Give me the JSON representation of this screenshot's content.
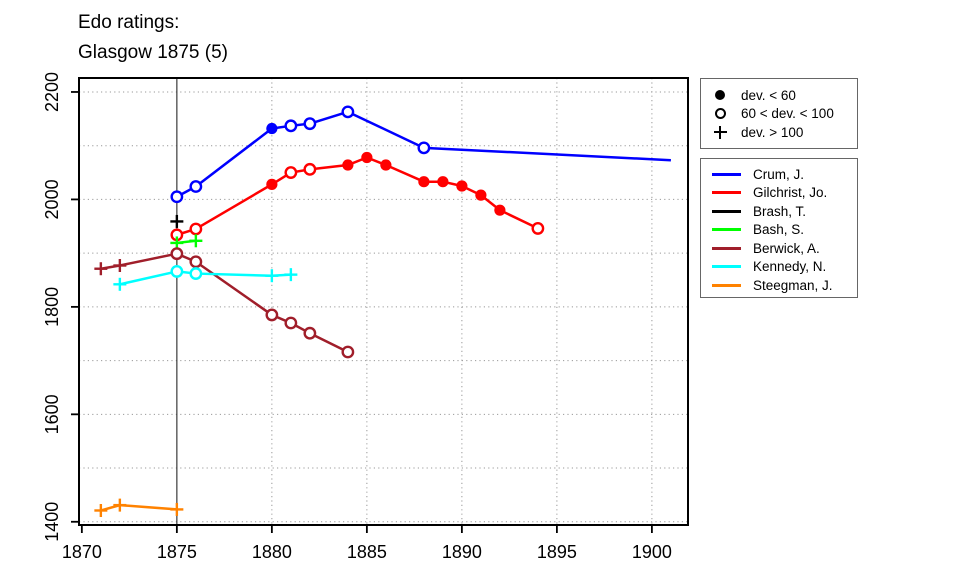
{
  "title": {
    "line1": "Edo ratings:",
    "line2": "Glasgow 1875 (5)"
  },
  "marker_legend": {
    "items": [
      {
        "marker": "filled-circle",
        "label": "dev. < 60"
      },
      {
        "marker": "open-circle",
        "label": "60 < dev. < 100"
      },
      {
        "marker": "plus",
        "label": "dev. > 100"
      }
    ]
  },
  "chart_data": {
    "type": "line",
    "title": "Edo ratings: Glasgow 1875 (5)",
    "xlabel": "",
    "ylabel": "",
    "xlim": [
      1869.85,
      1901.9
    ],
    "ylim": [
      1394,
      2226
    ],
    "x_ticks": [
      1870,
      1875,
      1880,
      1885,
      1890,
      1895,
      1900
    ],
    "y_ticks": [
      1400,
      1600,
      1800,
      2000,
      2200
    ],
    "x_gridlines": [
      1880,
      1885,
      1890,
      1895,
      1900
    ],
    "y_gridlines": [
      1400,
      1500,
      1600,
      1700,
      1800,
      1900,
      2000,
      2100,
      2200
    ],
    "event_line_x": 1875,
    "grid": "dotted",
    "legend_position": "right-outside",
    "marker_meaning": {
      "filled": "dev. < 60",
      "open": "60 < dev. < 100",
      "plus": "dev. > 100"
    },
    "series": [
      {
        "name": "Crum, J.",
        "color": "#0000FF",
        "points": [
          {
            "year": 1875,
            "rating": 2005,
            "marker": "open"
          },
          {
            "year": 1876,
            "rating": 2024,
            "marker": "open"
          },
          {
            "year": 1880,
            "rating": 2132,
            "marker": "filled"
          },
          {
            "year": 1881,
            "rating": 2137,
            "marker": "open"
          },
          {
            "year": 1882,
            "rating": 2141,
            "marker": "open"
          },
          {
            "year": 1884,
            "rating": 2163,
            "marker": "open"
          },
          {
            "year": 1888,
            "rating": 2096,
            "marker": "open"
          },
          {
            "year": 1901,
            "rating": 2073,
            "marker": "none"
          }
        ]
      },
      {
        "name": "Gilchrist, Jo.",
        "color": "#FF0000",
        "points": [
          {
            "year": 1875,
            "rating": 1934,
            "marker": "open"
          },
          {
            "year": 1876,
            "rating": 1945,
            "marker": "open"
          },
          {
            "year": 1880,
            "rating": 2028,
            "marker": "filled"
          },
          {
            "year": 1881,
            "rating": 2050,
            "marker": "open"
          },
          {
            "year": 1882,
            "rating": 2056,
            "marker": "open"
          },
          {
            "year": 1884,
            "rating": 2064,
            "marker": "filled"
          },
          {
            "year": 1885,
            "rating": 2078,
            "marker": "filled"
          },
          {
            "year": 1886,
            "rating": 2064,
            "marker": "filled"
          },
          {
            "year": 1888,
            "rating": 2033,
            "marker": "filled"
          },
          {
            "year": 1889,
            "rating": 2033,
            "marker": "filled"
          },
          {
            "year": 1890,
            "rating": 2025,
            "marker": "filled"
          },
          {
            "year": 1891,
            "rating": 2008,
            "marker": "filled"
          },
          {
            "year": 1892,
            "rating": 1980,
            "marker": "filled"
          },
          {
            "year": 1894,
            "rating": 1946,
            "marker": "open"
          }
        ]
      },
      {
        "name": "Brash, T.",
        "color": "#000000",
        "points": [
          {
            "year": 1875,
            "rating": 1959,
            "marker": "plus"
          }
        ]
      },
      {
        "name": "Bash, S.",
        "color": "#00FF00",
        "points": [
          {
            "year": 1875,
            "rating": 1919,
            "marker": "plus"
          },
          {
            "year": 1876,
            "rating": 1923,
            "marker": "plus"
          }
        ]
      },
      {
        "name": "Berwick, A.",
        "color": "#A01E2A",
        "points": [
          {
            "year": 1871,
            "rating": 1871,
            "marker": "plus"
          },
          {
            "year": 1872,
            "rating": 1877,
            "marker": "plus"
          },
          {
            "year": 1875,
            "rating": 1899,
            "marker": "open"
          },
          {
            "year": 1876,
            "rating": 1884,
            "marker": "open"
          },
          {
            "year": 1880,
            "rating": 1785,
            "marker": "open"
          },
          {
            "year": 1881,
            "rating": 1770,
            "marker": "open"
          },
          {
            "year": 1882,
            "rating": 1751,
            "marker": "open"
          },
          {
            "year": 1884,
            "rating": 1716,
            "marker": "open"
          }
        ]
      },
      {
        "name": "Kennedy, N.",
        "color": "#00FFFF",
        "points": [
          {
            "year": 1872,
            "rating": 1842,
            "marker": "plus"
          },
          {
            "year": 1875,
            "rating": 1866,
            "marker": "open"
          },
          {
            "year": 1876,
            "rating": 1862,
            "marker": "open"
          },
          {
            "year": 1880,
            "rating": 1858,
            "marker": "plus"
          },
          {
            "year": 1881,
            "rating": 1860,
            "marker": "plus"
          }
        ]
      },
      {
        "name": "Steegman, J.",
        "color": "#FF8200",
        "points": [
          {
            "year": 1871,
            "rating": 1421,
            "marker": "plus"
          },
          {
            "year": 1872,
            "rating": 1431,
            "marker": "plus"
          },
          {
            "year": 1875,
            "rating": 1423,
            "marker": "plus"
          }
        ]
      }
    ]
  },
  "colors": {
    "axis": "#000000",
    "grid": "#999999",
    "event_line": "#3a3a3a",
    "background": "#ffffff"
  }
}
